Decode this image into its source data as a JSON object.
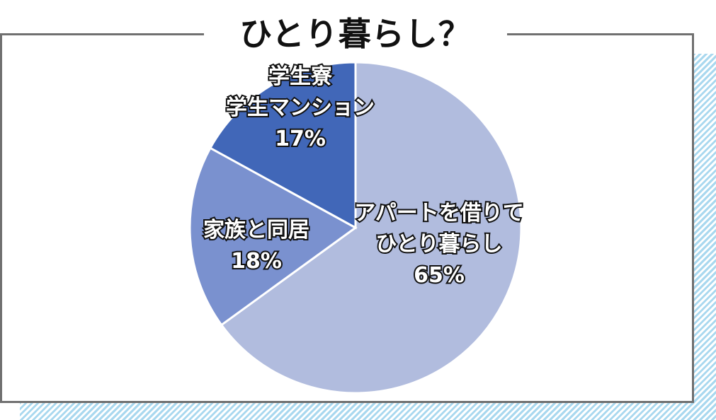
{
  "title": "ひとり暮らし？",
  "chart_data": {
    "type": "pie",
    "slices": [
      {
        "label_lines": [
          "アパートを借りて",
          "ひとり暮らし"
        ],
        "value": 65,
        "value_label": "65%",
        "color": "#b1bcde"
      },
      {
        "label_lines": [
          "家族と同居"
        ],
        "value": 18,
        "value_label": "18%",
        "color": "#7a91cf"
      },
      {
        "label_lines": [
          "学生寮",
          "学生マンション"
        ],
        "value": 17,
        "value_label": "17%",
        "color": "#4167b8"
      }
    ]
  },
  "colors": {
    "frame": "#707070",
    "stripes": "#a9d8ef",
    "slice_border": "#ffffff"
  }
}
